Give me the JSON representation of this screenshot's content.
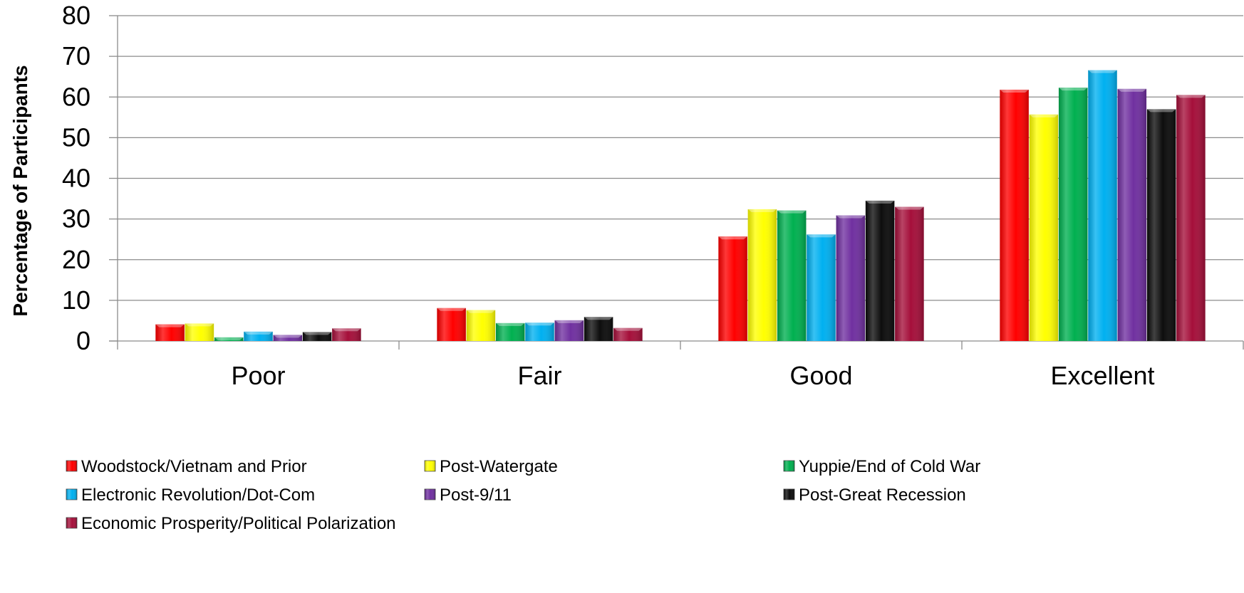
{
  "chart_data": {
    "type": "bar",
    "title": "",
    "xlabel": "",
    "ylabel": "Percentage of Participants",
    "ylim": [
      0,
      80
    ],
    "yticks": [
      0,
      10,
      20,
      30,
      40,
      50,
      60,
      70,
      80
    ],
    "grid": true,
    "legend_position": "bottom",
    "categories": [
      "Poor",
      "Fair",
      "Good",
      "Excellent"
    ],
    "series": [
      {
        "name": "Woodstock/Vietnam and Prior",
        "color": "#ff0000",
        "values": [
          4.1,
          8.1,
          25.7,
          61.8
        ]
      },
      {
        "name": "Post-Watergate",
        "color": "#ffff00",
        "values": [
          4.3,
          7.6,
          32.4,
          55.7
        ]
      },
      {
        "name": "Yuppie/End of Cold War",
        "color": "#00b050",
        "values": [
          0.9,
          4.4,
          32.1,
          62.3
        ]
      },
      {
        "name": "Electronic Revolution/Dot-Com",
        "color": "#00b0f0",
        "values": [
          2.3,
          4.5,
          26.2,
          66.6
        ]
      },
      {
        "name": "Post-9/11",
        "color": "#7030a0",
        "values": [
          1.5,
          5.1,
          30.9,
          62.0
        ]
      },
      {
        "name": "Post-Great Recession",
        "color": "#0d0d0d",
        "values": [
          2.2,
          5.9,
          34.5,
          57.0
        ]
      },
      {
        "name": "Economic Prosperity/Political Polarization",
        "color": "#a50f3a",
        "values": [
          3.1,
          3.2,
          33.0,
          60.5
        ]
      }
    ]
  }
}
